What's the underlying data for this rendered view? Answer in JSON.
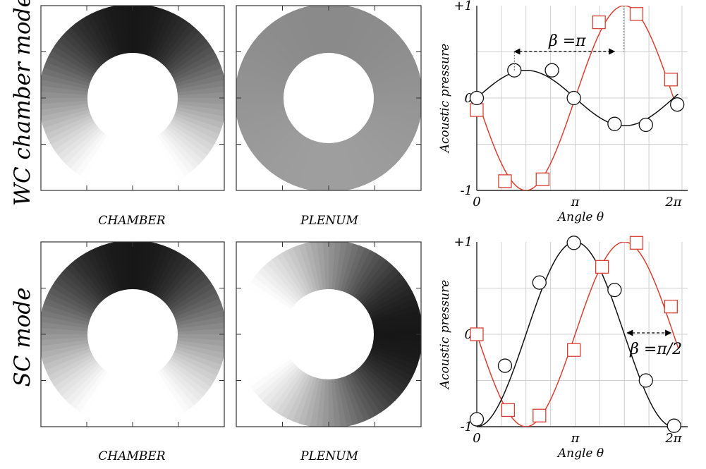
{
  "rows": [
    {
      "mode_label": "WC chamber mode",
      "panels": [
        {
          "caption": "CHAMBER",
          "field": {
            "kind": "cos",
            "amplitude": 1.0,
            "phase_deg": 90
          }
        },
        {
          "caption": "PLENUM",
          "field": {
            "kind": "cos",
            "amplitude": 0.08,
            "phase_deg": 90
          }
        }
      ]
    },
    {
      "mode_label": "SC mode",
      "panels": [
        {
          "caption": "CHAMBER",
          "field": {
            "kind": "cos",
            "amplitude": 1.0,
            "phase_deg": 90
          }
        },
        {
          "caption": "PLENUM",
          "field": {
            "kind": "cos",
            "amplitude": 1.0,
            "phase_deg": 0
          }
        }
      ]
    }
  ],
  "chart_data": [
    {
      "type": "line",
      "ylabel": "Acoustic pressure",
      "xlabel": "Angle θ",
      "xticks": [
        "0",
        "π",
        "2π"
      ],
      "yticks": [
        "+1",
        "0",
        "-1"
      ],
      "xlim": [
        0,
        6.2832
      ],
      "ylim": [
        -1,
        1
      ],
      "grid": true,
      "annotation": {
        "text": "β =π",
        "from_x": 1.2,
        "to_x": 4.4
      },
      "series": [
        {
          "color": "#d94032",
          "marker": "square",
          "line": {
            "kind": "sin",
            "amplitude": -1.0,
            "phase": 0
          },
          "points": [
            {
              "x": 0.0,
              "y": -0.13
            },
            {
              "x": 0.9,
              "y": -0.9
            },
            {
              "x": 2.1,
              "y": -0.88
            },
            {
              "x": 3.9,
              "y": 0.82
            },
            {
              "x": 5.1,
              "y": 0.91
            },
            {
              "x": 6.2,
              "y": 0.2
            }
          ]
        },
        {
          "color": "#111111",
          "marker": "circle",
          "line": {
            "kind": "sin",
            "amplitude": 0.3,
            "phase": 0
          },
          "points": [
            {
              "x": 0.0,
              "y": 0.0
            },
            {
              "x": 1.2,
              "y": 0.3
            },
            {
              "x": 2.4,
              "y": 0.3
            },
            {
              "x": 3.1,
              "y": 0.0
            },
            {
              "x": 4.4,
              "y": -0.28
            },
            {
              "x": 5.4,
              "y": -0.29
            },
            {
              "x": 6.4,
              "y": -0.07
            }
          ]
        }
      ]
    },
    {
      "type": "line",
      "ylabel": "Acoustic pressure",
      "xlabel": "Angle θ",
      "xticks": [
        "0",
        "π",
        "2π"
      ],
      "yticks": [
        "+1",
        "0",
        "-1"
      ],
      "xlim": [
        0,
        6.2832
      ],
      "ylim": [
        -1,
        1
      ],
      "grid": true,
      "annotation": {
        "text": "β =π/2",
        "from_x": 4.8,
        "to_x": 6.2
      },
      "series": [
        {
          "color": "#d94032",
          "marker": "square",
          "line": {
            "kind": "sin",
            "amplitude": -1.0,
            "phase": 0
          },
          "points": [
            {
              "x": 0.0,
              "y": 0.0
            },
            {
              "x": 1.0,
              "y": -0.82
            },
            {
              "x": 2.0,
              "y": -0.88
            },
            {
              "x": 3.1,
              "y": -0.17
            },
            {
              "x": 4.0,
              "y": 0.73
            },
            {
              "x": 5.1,
              "y": 0.99
            },
            {
              "x": 6.2,
              "y": 0.3
            }
          ]
        },
        {
          "color": "#111111",
          "marker": "circle",
          "line": {
            "kind": "cos",
            "amplitude": -1.0,
            "phase": 0
          },
          "points": [
            {
              "x": 0.0,
              "y": -0.92
            },
            {
              "x": 0.9,
              "y": -0.34
            },
            {
              "x": 2.0,
              "y": 0.56
            },
            {
              "x": 3.1,
              "y": 0.99
            },
            {
              "x": 4.4,
              "y": 0.48
            },
            {
              "x": 5.4,
              "y": -0.5
            },
            {
              "x": 6.3,
              "y": -0.99
            }
          ]
        }
      ]
    }
  ]
}
